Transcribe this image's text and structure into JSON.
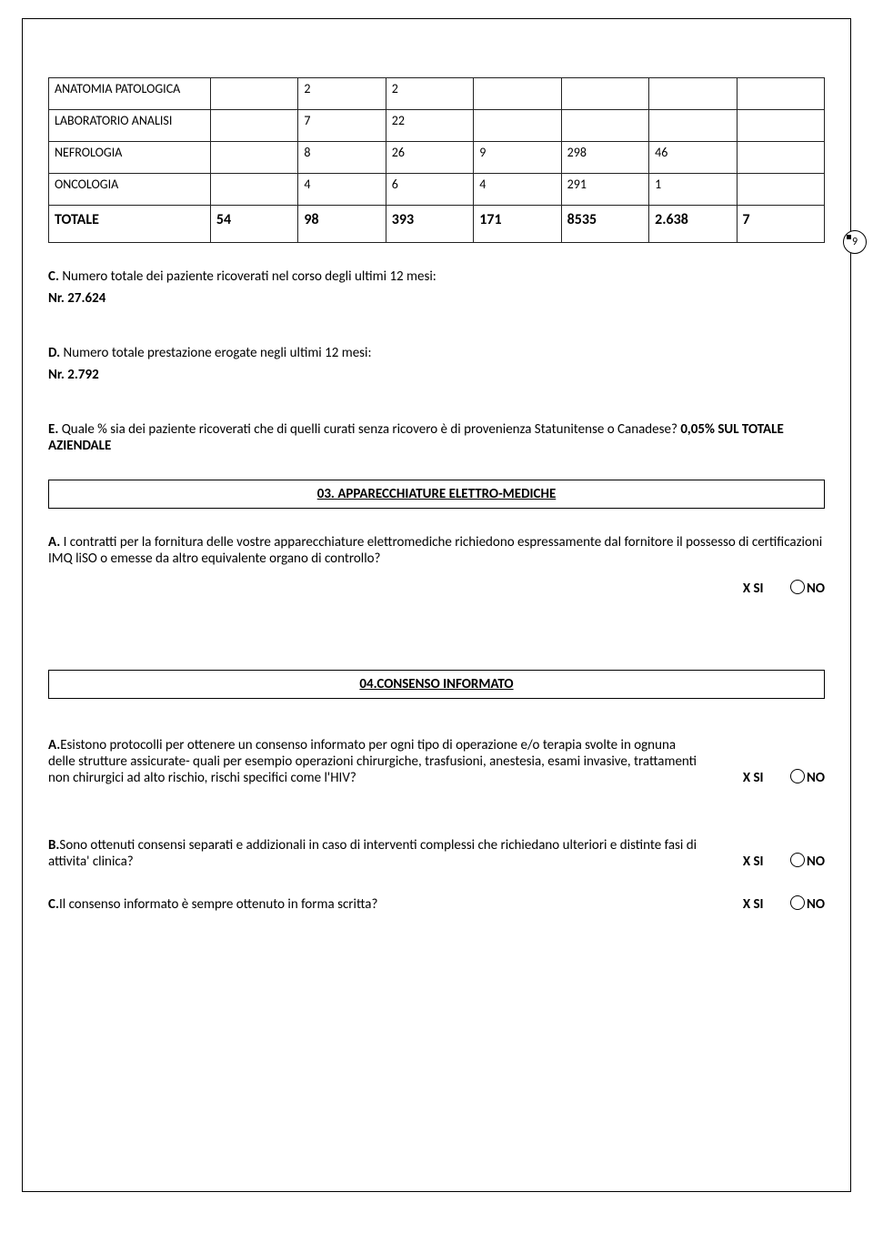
{
  "page_badge": "9",
  "table": {
    "rows": [
      {
        "label": "ANATOMIA PATOLOGICA",
        "c1": "",
        "c2": "2",
        "c3": "2",
        "c4": "",
        "c5": "",
        "c6": "",
        "c7": ""
      },
      {
        "label": "LABORATORIO ANALISI",
        "c1": "",
        "c2": "7",
        "c3": "22",
        "c4": "",
        "c5": "",
        "c6": "",
        "c7": ""
      },
      {
        "label": "NEFROLOGIA",
        "c1": "",
        "c2": "8",
        "c3": "26",
        "c4": "9",
        "c5": "298",
        "c6": "46",
        "c7": ""
      },
      {
        "label": "ONCOLOGIA",
        "c1": "",
        "c2": "4",
        "c3": "6",
        "c4": "4",
        "c5": "291",
        "c6": "1",
        "c7": ""
      }
    ],
    "total": {
      "label": "TOTALE",
      "c1": "54",
      "c2": "98",
      "c3": "393",
      "c4": "171",
      "c5": "8535",
      "c6": "2.638",
      "c7": "7"
    }
  },
  "qC": {
    "label": "C.",
    "text": " Numero totale dei paziente ricoverati nel corso degli ultimi 12 mesi:",
    "answer": "Nr. 27.624"
  },
  "qD": {
    "label": "D.",
    "text": " Numero totale prestazione erogate negli ultimi 12 mesi:",
    "answer": "Nr. 2.792"
  },
  "qE": {
    "label": "E.",
    "text": " Quale % sia dei paziente ricoverati che di quelli curati senza ricovero è di provenienza Statunitense o Canadese?  ",
    "bold_answer": "0,05% SUL TOTALE AZIENDALE"
  },
  "section03": "03. APPARECCHIATURE ELETTRO-MEDICHE",
  "q03A": {
    "label": "A.",
    "text": " I contratti per la fornitura delle vostre apparecchiature elettromediche richiedono espressamente dal fornitore il possesso di certificazioni IMQ liSO o emesse da altro equivalente organo di controllo?",
    "si": "X SI",
    "no": "NO"
  },
  "section04": "04.CONSENSO INFORMATO",
  "q04A": {
    "label": "A.",
    "text": "Esistono protocolli per ottenere un consenso informato per ogni tipo di operazione e/o terapia svolte in ognuna delle strutture assicurate- quali per esempio operazioni chirurgiche, trasfusioni, anestesia, esami invasive, trattamenti non chirurgici ad alto rischio, rischi specifici come l'HIV?",
    "si": "X SI",
    "no": "NO"
  },
  "q04B": {
    "label": "B.",
    "text": "Sono ottenuti consensi separati e addizionali in caso di interventi complessi che richiedano ulteriori e distinte fasi di attivita' clinica?",
    "si": "X SI",
    "no": "NO"
  },
  "q04C": {
    "label": "C.",
    "text": "Il consenso informato è sempre ottenuto in forma scritta?",
    "si": "X SI",
    "no": "NO"
  }
}
